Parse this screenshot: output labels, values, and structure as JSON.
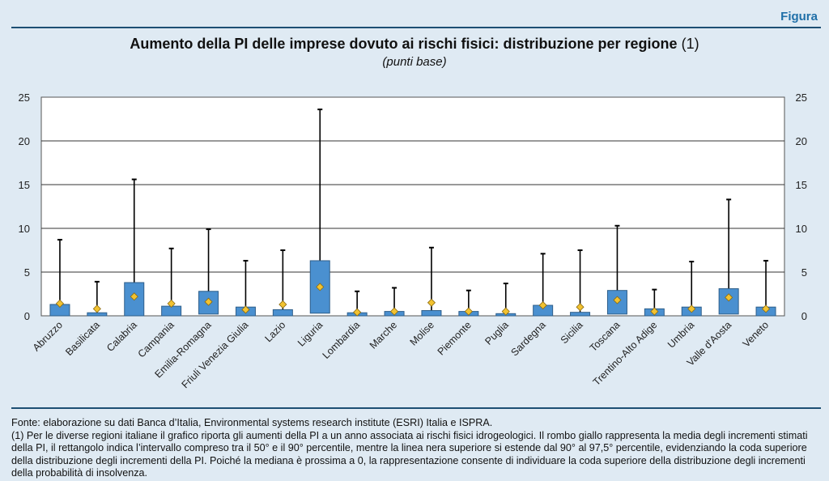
{
  "header": {
    "figure_label": "Figura"
  },
  "chart_data": {
    "type": "box",
    "title": "Aumento della PI delle imprese dovuto ai rischi fisici: distribuzione per regione",
    "title_note": "(1)",
    "subtitle": "(punti base)",
    "xlabel": "",
    "ylabel": "",
    "ylim": [
      0,
      25
    ],
    "yticks": [
      0,
      5,
      10,
      15,
      20,
      25
    ],
    "grid": true,
    "categories": [
      "Abruzzo",
      "Basilicata",
      "Calabria",
      "Campania",
      "Emilia-Romagna",
      "Friuli Venezia Giulia",
      "Lazio",
      "Liguria",
      "Lombardia",
      "Marche",
      "Molise",
      "Piemonte",
      "Puglia",
      "Sardegna",
      "Sicilia",
      "Toscana",
      "Trentino-Alto Adige",
      "Umbria",
      "Valle d'Aosta",
      "Veneto"
    ],
    "series": [
      {
        "name": "50° percentile",
        "values": [
          0,
          0,
          0,
          0,
          0.2,
          0,
          0,
          0.3,
          0,
          0,
          0,
          0,
          0,
          0,
          0,
          0.2,
          0,
          0,
          0.2,
          0
        ]
      },
      {
        "name": "90° percentile",
        "values": [
          1.3,
          0.35,
          3.8,
          1.1,
          2.8,
          1.0,
          0.7,
          6.3,
          0.35,
          0.5,
          0.6,
          0.5,
          0.25,
          1.2,
          0.4,
          2.9,
          0.8,
          1.0,
          3.1,
          1.0
        ]
      },
      {
        "name": "97,5° percentile",
        "values": [
          8.7,
          3.9,
          15.6,
          7.7,
          9.9,
          6.3,
          7.5,
          23.6,
          2.8,
          3.2,
          7.8,
          2.9,
          3.7,
          7.1,
          7.5,
          10.3,
          3.0,
          6.2,
          13.3,
          6.3
        ]
      },
      {
        "name": "media",
        "values": [
          1.4,
          0.8,
          2.2,
          1.4,
          1.6,
          0.7,
          1.3,
          3.3,
          0.4,
          0.5,
          1.5,
          0.5,
          0.5,
          1.2,
          1.0,
          1.8,
          0.5,
          0.8,
          2.1,
          0.8
        ]
      }
    ],
    "colors": {
      "box": "#4a90d0",
      "box_border": "#2f5f8a",
      "mean": "#f2c230",
      "whisker": "#000000"
    }
  },
  "footer": {
    "source": "Fonte: elaborazione su dati Banca d’Italia, Environmental systems research institute (ESRI) Italia e ISPRA.",
    "note": "(1) Per le diverse regioni italiane il grafico riporta gli aumenti della PI a un anno associata ai rischi fisici idrogeologici. Il rombo giallo rappresenta la media degli incrementi stimati della PI, il rettangolo indica l’intervallo compreso tra il 50° e il 90° percentile, mentre la linea nera superiore si estende dal 90° al 97,5° percentile, evidenziando la coda superiore della distribuzione degli incrementi della PI. Poiché la mediana è prossima a 0, la rappresentazione consente di individuare la coda superiore della distribuzione degli incrementi della probabilità di insolvenza."
  }
}
